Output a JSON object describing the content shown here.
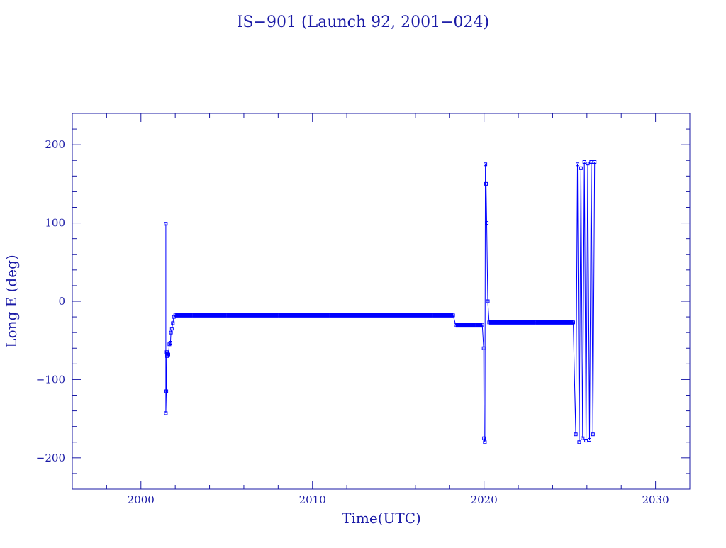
{
  "colors": {
    "axis": "#1a1aa6",
    "series": "#0000ff",
    "text": "#1a1aa6"
  },
  "chart_data": {
    "type": "line",
    "title": "IS−901 (Launch 92, 2001−024)",
    "xlabel": "Time(UTC)",
    "ylabel": "Long E (deg)",
    "xlim": [
      1996,
      2032
    ],
    "ylim": [
      -240,
      240
    ],
    "xticks": [
      "2000",
      "2010",
      "2020",
      "2030"
    ],
    "yticks": [
      "200",
      "100",
      "0",
      "−100",
      "−200"
    ],
    "grid": false,
    "series": [
      {
        "marker": "square",
        "x": [
          2001.45,
          2001.45,
          2001.48,
          2001.5,
          2001.52,
          2001.56,
          2001.6,
          2001.66,
          2001.72,
          2001.75,
          2001.8,
          2001.86,
          2001.92,
          2002.0,
          2003.0,
          2005.0,
          2008.0,
          2011.0,
          2014.0,
          2017.0,
          2018.2,
          2018.35,
          2019.5,
          2019.9,
          2019.98,
          2020.0,
          2020.05,
          2020.08,
          2020.12,
          2020.16,
          2020.22,
          2020.3,
          2021.0,
          2023.0,
          2025.2,
          2025.35,
          2025.45,
          2025.55,
          2025.65,
          2025.75,
          2025.85,
          2025.95,
          2026.05,
          2026.15,
          2026.25,
          2026.35,
          2026.45
        ],
        "y": [
          99,
          -143,
          -115,
          -65,
          -70,
          -67,
          -68,
          -55,
          -53,
          -40,
          -35,
          -28,
          -20,
          -18,
          -18,
          -18,
          -18,
          -18,
          -18,
          -18,
          -18,
          -30,
          -30,
          -30,
          -60,
          -175,
          -180,
          175,
          150,
          100,
          0,
          -27,
          -27,
          -27,
          -27,
          -170,
          175,
          -180,
          170,
          -175,
          178,
          -178,
          176,
          -177,
          178,
          -170,
          178
        ]
      }
    ]
  }
}
